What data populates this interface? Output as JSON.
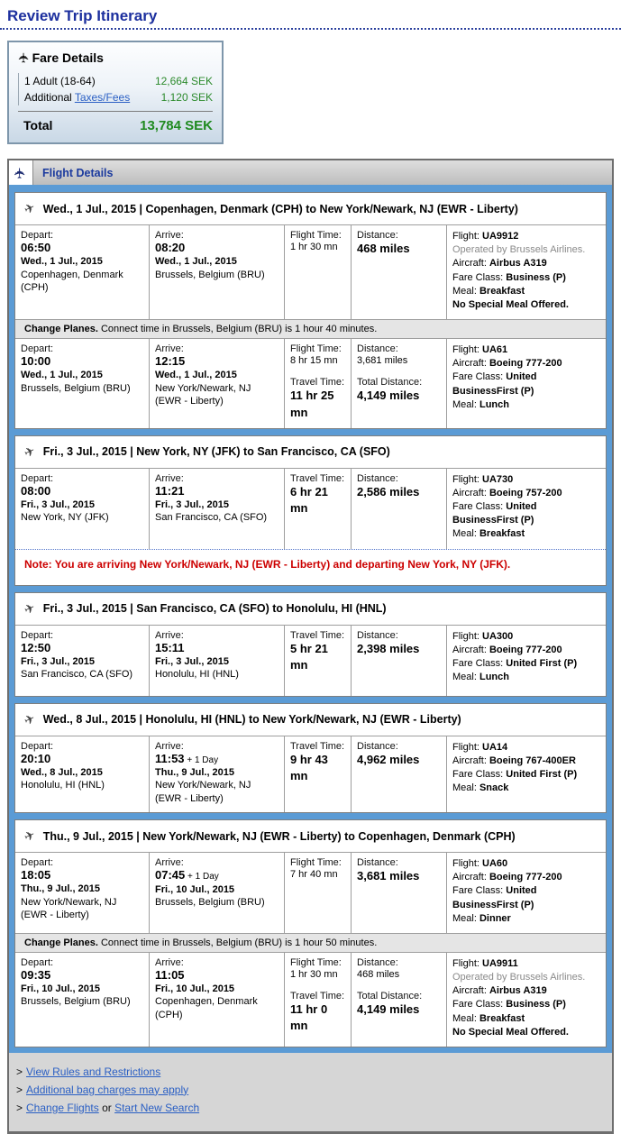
{
  "page_title": "Review Trip Itinerary",
  "colors": {
    "accent_blue": "#5b9bd5",
    "title_blue": "#1c2f9e",
    "link_blue": "#2a5fc4",
    "amount_green": "#2c8a2c",
    "total_green": "#1f8a1f",
    "note_red": "#cc0000"
  },
  "icons": {
    "fare_plane_icon": "✈",
    "flight_details_plane_icon": "✈",
    "segment_plane_icon": "✈"
  },
  "fare_details": {
    "title": "Fare Details",
    "rows": [
      {
        "label": "1 Adult (18-64)",
        "amount": "12,664 SEK"
      },
      {
        "label": "Additional ",
        "link": "Taxes/Fees",
        "amount": "1,120 SEK"
      }
    ],
    "total_label": "Total",
    "total_amount": "13,784 SEK"
  },
  "flight_details": {
    "title": "Flight Details",
    "segments": [
      {
        "title": "Wed., 1 Jul., 2015 | Copenhagen, Denmark (CPH) to New York/Newark, NJ (EWR - Liberty)",
        "blocks": [
          {
            "type": "leg",
            "depart": {
              "label": "Depart:",
              "time": "06:50",
              "date": "Wed., 1 Jul., 2015",
              "location": "Copenhagen, Denmark (CPH)"
            },
            "arrive": {
              "label": "Arrive:",
              "time": "08:20",
              "date": "Wed., 1 Jul., 2015",
              "location": "Brussels, Belgium (BRU)"
            },
            "times": [
              {
                "label": "Flight Time:",
                "value": "1 hr 30 mn",
                "big": false
              }
            ],
            "distances": [
              {
                "label": "Distance:",
                "value": "468 miles",
                "big": true
              }
            ],
            "flight": [
              {
                "label": "Flight:",
                "value": "UA9912"
              },
              {
                "text": "Operated by Brussels Airlines.",
                "style": "gray"
              },
              {
                "label": "Aircraft:",
                "value": "Airbus A319"
              },
              {
                "label": "Fare Class:",
                "value": "Business (P)"
              },
              {
                "label": "Meal:",
                "value": "Breakfast"
              },
              {
                "text": "No Special Meal Offered.",
                "style": "bold"
              }
            ]
          },
          {
            "type": "connector",
            "bold": "Change Planes.",
            "text": " Connect time in Brussels, Belgium (BRU) is 1 hour 40 minutes."
          },
          {
            "type": "leg",
            "depart": {
              "label": "Depart:",
              "time": "10:00",
              "date": "Wed., 1 Jul., 2015",
              "location": "Brussels, Belgium (BRU)"
            },
            "arrive": {
              "label": "Arrive:",
              "time": "12:15",
              "date": "Wed., 1 Jul., 2015",
              "location": "New York/Newark, NJ (EWR - Liberty)"
            },
            "times": [
              {
                "label": "Flight Time:",
                "value": "8 hr 15 mn",
                "big": false
              },
              {
                "label": "Travel Time:",
                "value": "11 hr 25 mn",
                "big": true
              }
            ],
            "distances": [
              {
                "label": "Distance:",
                "value": "3,681 miles",
                "big": false
              },
              {
                "label": "Total Distance:",
                "value": "4,149 miles",
                "big": true
              }
            ],
            "flight": [
              {
                "label": "Flight:",
                "value": "UA61"
              },
              {
                "label": "Aircraft:",
                "value": "Boeing 777-200"
              },
              {
                "label": "Fare Class:",
                "value": "United BusinessFirst (P)"
              },
              {
                "label": "Meal:",
                "value": "Lunch"
              }
            ]
          }
        ]
      },
      {
        "title": "Fri., 3 Jul., 2015 | New York, NY (JFK) to San Francisco, CA (SFO)",
        "blocks": [
          {
            "type": "leg",
            "depart": {
              "label": "Depart:",
              "time": "08:00",
              "date": "Fri., 3 Jul., 2015",
              "location": "New York, NY (JFK)"
            },
            "arrive": {
              "label": "Arrive:",
              "time": "11:21",
              "date": "Fri., 3 Jul., 2015",
              "location": "San Francisco, CA (SFO)"
            },
            "times": [
              {
                "label": "Travel Time:",
                "value": "6 hr 21 mn",
                "big": true
              }
            ],
            "distances": [
              {
                "label": "Distance:",
                "value": "2,586 miles",
                "big": true
              }
            ],
            "flight": [
              {
                "label": "Flight:",
                "value": "UA730"
              },
              {
                "label": "Aircraft:",
                "value": "Boeing 757-200"
              },
              {
                "label": "Fare Class:",
                "value": "United BusinessFirst (P)"
              },
              {
                "label": "Meal:",
                "value": "Breakfast"
              }
            ]
          },
          {
            "type": "note",
            "text": "Note: You are arriving New York/Newark, NJ (EWR - Liberty) and departing New York, NY (JFK)."
          }
        ]
      },
      {
        "title": "Fri., 3 Jul., 2015 | San Francisco, CA (SFO) to Honolulu, HI (HNL)",
        "blocks": [
          {
            "type": "leg",
            "depart": {
              "label": "Depart:",
              "time": "12:50",
              "date": "Fri., 3 Jul., 2015",
              "location": "San Francisco, CA (SFO)"
            },
            "arrive": {
              "label": "Arrive:",
              "time": "15:11",
              "date": "Fri., 3 Jul., 2015",
              "location": "Honolulu, HI (HNL)"
            },
            "times": [
              {
                "label": "Travel Time:",
                "value": "5 hr 21 mn",
                "big": true
              }
            ],
            "distances": [
              {
                "label": "Distance:",
                "value": "2,398 miles",
                "big": true
              }
            ],
            "flight": [
              {
                "label": "Flight:",
                "value": "UA300"
              },
              {
                "label": "Aircraft:",
                "value": "Boeing 777-200"
              },
              {
                "label": "Fare Class:",
                "value": "United First (P)"
              },
              {
                "label": "Meal:",
                "value": "Lunch"
              }
            ]
          }
        ]
      },
      {
        "title": "Wed., 8 Jul., 2015 | Honolulu, HI (HNL) to New York/Newark, NJ (EWR - Liberty)",
        "blocks": [
          {
            "type": "leg",
            "depart": {
              "label": "Depart:",
              "time": "20:10",
              "date": "Wed., 8 Jul., 2015",
              "location": "Honolulu, HI (HNL)"
            },
            "arrive": {
              "label": "Arrive:",
              "time": "11:53",
              "suffix": " + 1 Day",
              "date": "Thu., 9 Jul., 2015",
              "location": "New York/Newark, NJ (EWR - Liberty)"
            },
            "times": [
              {
                "label": "Travel Time:",
                "value": "9 hr 43 mn",
                "big": true
              }
            ],
            "distances": [
              {
                "label": "Distance:",
                "value": "4,962 miles",
                "big": true
              }
            ],
            "flight": [
              {
                "label": "Flight:",
                "value": "UA14"
              },
              {
                "label": "Aircraft:",
                "value": "Boeing 767-400ER"
              },
              {
                "label": "Fare Class:",
                "value": "United First (P)"
              },
              {
                "label": "Meal:",
                "value": "Snack"
              }
            ]
          }
        ]
      },
      {
        "title": "Thu., 9 Jul., 2015 | New York/Newark, NJ (EWR - Liberty) to Copenhagen, Denmark (CPH)",
        "blocks": [
          {
            "type": "leg",
            "depart": {
              "label": "Depart:",
              "time": "18:05",
              "date": "Thu., 9 Jul., 2015",
              "location": "New York/Newark, NJ (EWR - Liberty)"
            },
            "arrive": {
              "label": "Arrive:",
              "time": "07:45",
              "suffix": " + 1 Day",
              "date": "Fri., 10 Jul., 2015",
              "location": "Brussels, Belgium (BRU)"
            },
            "times": [
              {
                "label": "Flight Time:",
                "value": "7 hr 40 mn",
                "big": false
              }
            ],
            "distances": [
              {
                "label": "Distance:",
                "value": "3,681 miles",
                "big": true
              }
            ],
            "flight": [
              {
                "label": "Flight:",
                "value": "UA60"
              },
              {
                "label": "Aircraft:",
                "value": "Boeing 777-200"
              },
              {
                "label": "Fare Class:",
                "value": "United BusinessFirst (P)"
              },
              {
                "label": "Meal:",
                "value": "Dinner"
              }
            ]
          },
          {
            "type": "connector",
            "bold": "Change Planes.",
            "text": " Connect time in Brussels, Belgium (BRU) is 1 hour 50 minutes."
          },
          {
            "type": "leg",
            "depart": {
              "label": "Depart:",
              "time": "09:35",
              "date": "Fri., 10 Jul., 2015",
              "location": "Brussels, Belgium (BRU)"
            },
            "arrive": {
              "label": "Arrive:",
              "time": "11:05",
              "date": "Fri., 10 Jul., 2015",
              "location": "Copenhagen, Denmark (CPH)"
            },
            "times": [
              {
                "label": "Flight Time:",
                "value": "1 hr 30 mn",
                "big": false
              },
              {
                "label": "Travel Time:",
                "value": "11 hr 0 mn",
                "big": true
              }
            ],
            "distances": [
              {
                "label": "Distance:",
                "value": "468 miles",
                "big": false
              },
              {
                "label": "Total Distance:",
                "value": "4,149 miles",
                "big": true
              }
            ],
            "flight": [
              {
                "label": "Flight:",
                "value": "UA9911"
              },
              {
                "text": "Operated by Brussels Airlines.",
                "style": "gray"
              },
              {
                "label": "Aircraft:",
                "value": "Airbus A319"
              },
              {
                "label": "Fare Class:",
                "value": "Business (P)"
              },
              {
                "label": "Meal:",
                "value": "Breakfast"
              },
              {
                "text": "No Special Meal Offered.",
                "style": "bold"
              }
            ]
          }
        ]
      }
    ]
  },
  "footer": {
    "bullet": ">",
    "lines": [
      {
        "parts": [
          {
            "link": "View Rules and Restrictions"
          }
        ]
      },
      {
        "parts": [
          {
            "link": "Additional bag charges may apply"
          }
        ]
      },
      {
        "parts": [
          {
            "link": "Change Flights"
          },
          {
            "text": " or "
          },
          {
            "link": "Start New Search"
          }
        ]
      }
    ]
  }
}
